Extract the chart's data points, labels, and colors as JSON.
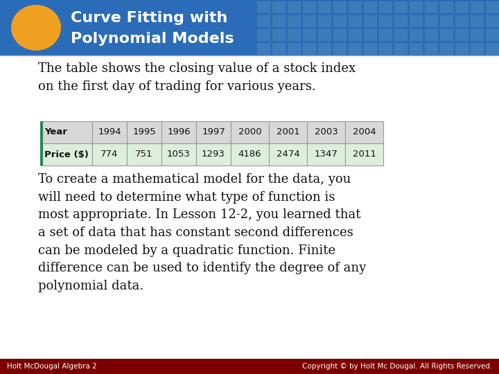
{
  "title_line1": "Curve Fitting with",
  "title_line2": "Polynomial Models",
  "header_bg": "#2b6cb8",
  "header_bg2": "#1a4e8a",
  "header_fg": "#ffffff",
  "oval_color": "#f0a020",
  "body_bg": "#e8eef5",
  "body_bg2": "#ffffff",
  "body_fg": "#111111",
  "footer_bg": "#7a0000",
  "footer_fg": "#ffffff",
  "footer_left": "Holt McDougal Algebra 2",
  "footer_right": "Copyright © by Holt Mc Dougal. All Rights Reserved.",
  "intro_text": "The table shows the closing value of a stock index\non the first day of trading for various years.",
  "table_headers": [
    "Year",
    "1994",
    "1995",
    "1996",
    "1997",
    "2000",
    "2001",
    "2003",
    "2004"
  ],
  "table_row": [
    "Price ($)",
    "774",
    "751",
    "1053",
    "1293",
    "4186",
    "2474",
    "1347",
    "2011"
  ],
  "table_header_bg": "#d8d8d8",
  "table_row_bg": "#ddeedd",
  "table_border": "#999999",
  "table_green": "#228855",
  "body_text": "To create a mathematical model for the data, you\nwill need to determine what type of function is\nmost appropriate. In Lesson 12-2, you learned that\na set of data that has constant second differences\ncan be modeled by a quadratic function. Finite\ndifference can be used to identify the degree of any\npolynomial data.",
  "grid_cell_color": "#4080b8",
  "grid_border_color": "#6699cc"
}
